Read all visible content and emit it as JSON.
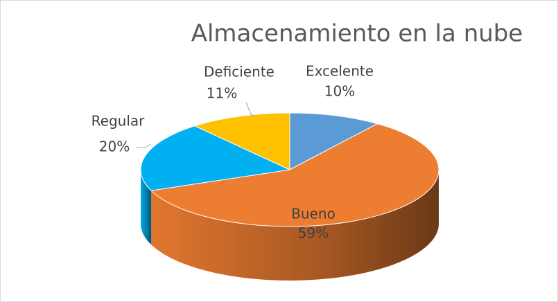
{
  "chart_data": {
    "type": "pie3d",
    "title": "Almacenamiento en la nube",
    "categories": [
      "Excelente",
      "Bueno",
      "Regular",
      "Deficiente"
    ],
    "values": [
      10,
      59,
      20,
      11
    ],
    "value_labels": [
      "10%",
      "59%",
      "20%",
      "11%"
    ],
    "colors": [
      "#5b9bd5",
      "#ed7d31",
      "#00b0f0",
      "#ffc000"
    ]
  }
}
